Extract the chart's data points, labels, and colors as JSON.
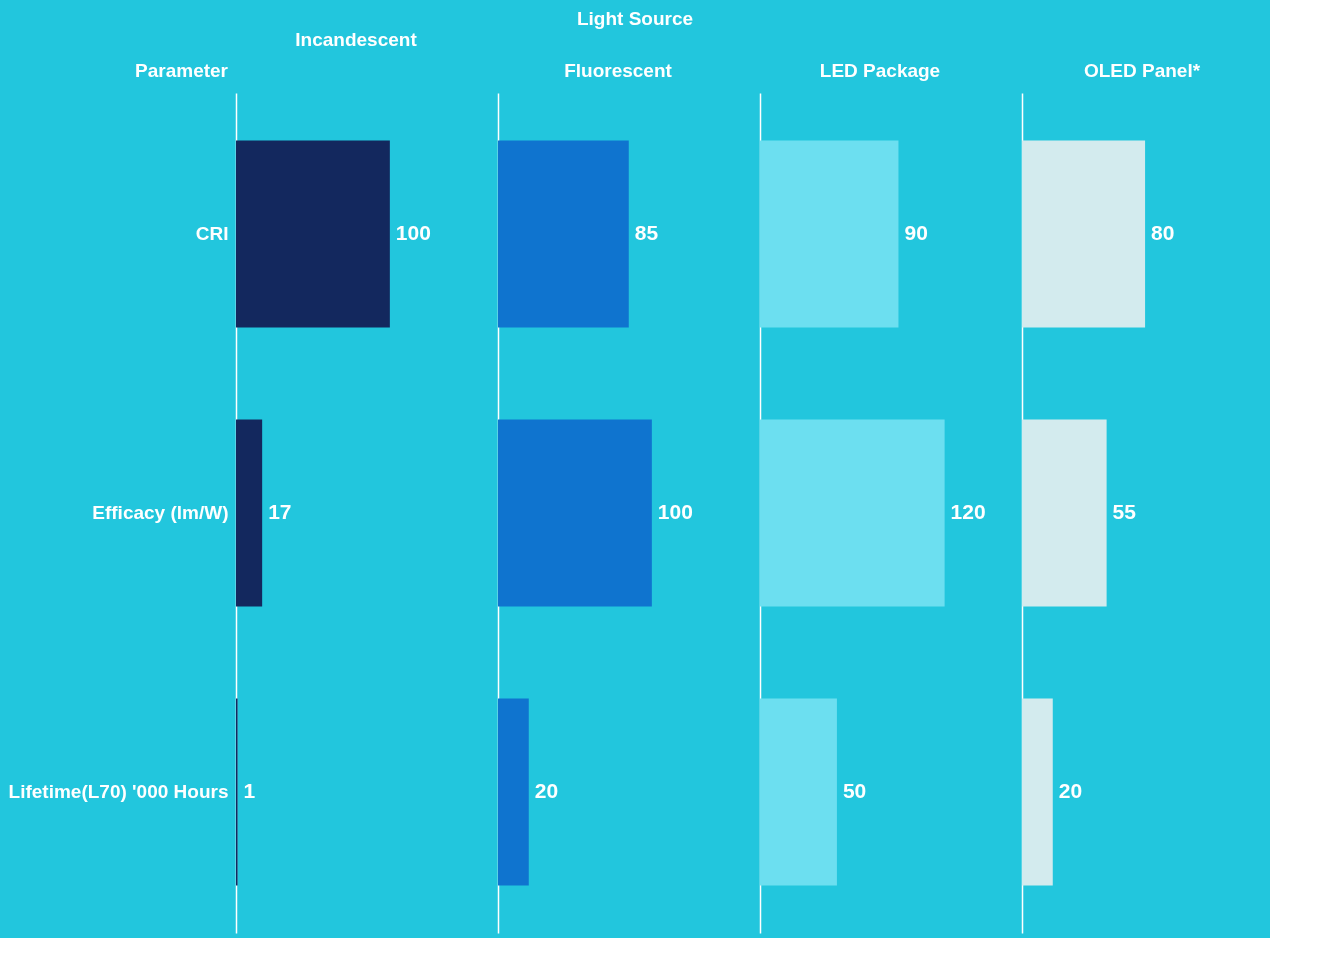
{
  "chart_data": [
    {
      "type": "bar",
      "orientation": "horizontal",
      "title": "Incandescent",
      "ylabel": "Parameter",
      "annotations": [
        "Light Source"
      ],
      "categories": [
        "CRI",
        "Efficacy (lm/W)",
        "Lifetime(L70) '000 Hours"
      ],
      "values": [
        100,
        17,
        1
      ],
      "color": "#13285e",
      "data_labels": true,
      "tick_labels": "y"
    },
    {
      "type": "bar",
      "orientation": "horizontal",
      "title": "Fluorescent",
      "categories": [
        null,
        null,
        null
      ],
      "values": [
        85,
        100,
        20
      ],
      "color": "#0f74cf",
      "data_labels": true,
      "tick_labels": false
    },
    {
      "type": "bar",
      "orientation": "horizontal",
      "title": "LED Package",
      "categories": [
        null,
        null,
        null
      ],
      "values": [
        90,
        120,
        50
      ],
      "color": "#6cdff0",
      "data_labels": true,
      "tick_labels": false
    },
    {
      "type": "bar",
      "orientation": "horizontal",
      "title": "OLED Panel*",
      "categories": [
        null,
        null,
        null
      ],
      "values": [
        80,
        55,
        20
      ],
      "color": "#d3ebee",
      "data_labels": true,
      "tick_labels": false
    }
  ]
}
